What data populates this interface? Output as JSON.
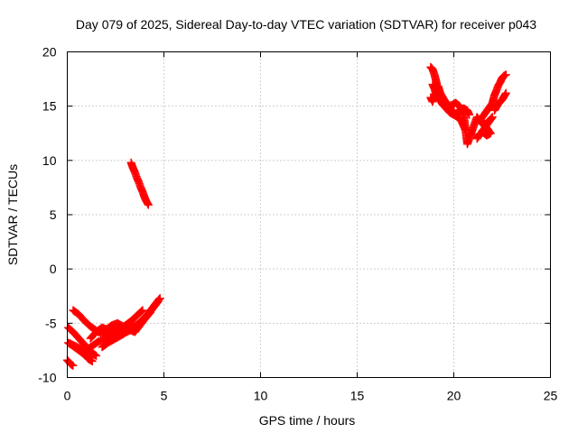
{
  "chart_data": {
    "type": "scatter",
    "title": "Day 079 of 2025, Sidereal Day-to-day VTEC variation (SDTVAR) for receiver p043",
    "xlabel": "GPS time / hours",
    "ylabel": "SDTVAR / TECUs",
    "xlim": [
      0,
      25
    ],
    "ylim": [
      -10,
      20
    ],
    "xticks": [
      "0",
      "5",
      "10",
      "15",
      "20",
      "25"
    ],
    "yticks": [
      "-10",
      "-5",
      "0",
      "5",
      "10",
      "15",
      "20"
    ],
    "grid": true,
    "legend": "none",
    "marker": "plus",
    "color": "#ff0000",
    "series": [
      {
        "x": [
          0.0,
          0.1,
          0.2,
          0.3,
          0.05,
          0.3,
          0.6,
          0.9,
          1.2,
          1.5,
          0.05,
          0.3,
          0.6,
          0.9,
          1.1,
          1.3,
          0.3,
          0.6,
          0.9,
          1.2,
          1.6,
          2.0,
          2.4,
          2.8,
          3.2,
          3.5,
          0.9,
          1.2,
          1.6,
          2.0,
          2.4,
          2.8,
          3.2,
          3.6,
          4.0,
          4.3,
          1.2,
          1.5,
          1.8,
          2.1,
          2.4,
          2.7,
          3.0,
          3.3,
          3.6,
          3.9,
          1.8,
          2.1,
          2.5,
          2.9,
          3.3,
          3.7,
          4.1,
          4.4,
          4.7,
          4.8,
          2.0,
          2.3,
          2.6,
          2.9,
          3.2,
          3.5,
          3.8,
          4.1,
          4.4,
          4.7
        ],
        "y": [
          -8.4,
          -8.6,
          -8.8,
          -8.9,
          -5.4,
          -5.8,
          -6.4,
          -7.0,
          -7.6,
          -8.0,
          -6.8,
          -7.1,
          -7.5,
          -7.9,
          -8.3,
          -8.5,
          -3.8,
          -4.2,
          -4.8,
          -5.3,
          -5.8,
          -6.1,
          -6.0,
          -5.8,
          -5.6,
          -5.4,
          -7.6,
          -7.2,
          -6.7,
          -6.4,
          -6.2,
          -6.0,
          -5.7,
          -5.2,
          -4.6,
          -4.0,
          -6.4,
          -5.8,
          -5.4,
          -5.6,
          -5.8,
          -5.5,
          -5.2,
          -4.8,
          -4.3,
          -3.8,
          -7.2,
          -6.8,
          -6.4,
          -6.0,
          -5.5,
          -5.0,
          -4.3,
          -3.6,
          -2.9,
          -2.7,
          -5.6,
          -5.2,
          -5.0,
          -5.3,
          -5.6,
          -5.8,
          -5.1,
          -4.4,
          -3.7,
          -3.0
        ]
      },
      {
        "x": [
          3.3,
          3.4,
          3.5,
          3.6,
          3.7,
          3.8,
          3.9,
          4.0,
          4.1,
          4.2
        ],
        "y": [
          9.8,
          9.3,
          8.9,
          8.4,
          8.0,
          7.5,
          7.1,
          6.6,
          6.2,
          5.9
        ]
      },
      {
        "x": [
          18.8,
          18.9,
          19.0,
          19.1,
          19.2,
          19.3,
          19.5,
          19.7,
          19.9,
          20.1,
          20.3,
          20.5,
          20.7,
          20.8,
          18.9,
          19.0,
          19.1,
          19.3,
          19.4,
          19.6,
          19.8,
          20.0,
          20.2,
          20.4,
          20.6,
          18.8,
          18.9,
          19.0,
          19.2,
          19.3,
          19.5,
          19.7,
          19.9,
          20.1,
          20.3,
          20.5,
          20.7,
          21.2,
          21.4,
          21.6,
          21.8,
          22.0,
          21.2,
          21.3,
          21.5,
          21.7,
          21.9,
          21.4,
          21.6,
          21.8,
          22.0,
          22.1,
          22.2,
          22.3,
          22.4,
          22.5,
          22.6,
          22.7,
          22.1,
          22.3,
          22.5,
          22.7
        ],
        "y": [
          18.6,
          18.4,
          17.9,
          17.2,
          16.4,
          15.7,
          15.3,
          15.1,
          14.6,
          14.3,
          14.5,
          14.8,
          14.6,
          14.2,
          17.0,
          16.6,
          16.0,
          15.5,
          15.2,
          14.8,
          14.4,
          14.2,
          14.0,
          13.6,
          12.8,
          15.8,
          15.4,
          15.9,
          16.8,
          16.2,
          15.6,
          15.0,
          15.1,
          15.3,
          15.0,
          14.3,
          11.5,
          14.0,
          13.5,
          13.2,
          13.6,
          14.0,
          12.0,
          12.4,
          12.6,
          12.3,
          12.5,
          13.8,
          14.3,
          14.8,
          15.3,
          16.0,
          16.4,
          16.9,
          17.2,
          17.6,
          17.8,
          17.9,
          14.6,
          15.2,
          15.6,
          16.2
        ]
      }
    ]
  }
}
